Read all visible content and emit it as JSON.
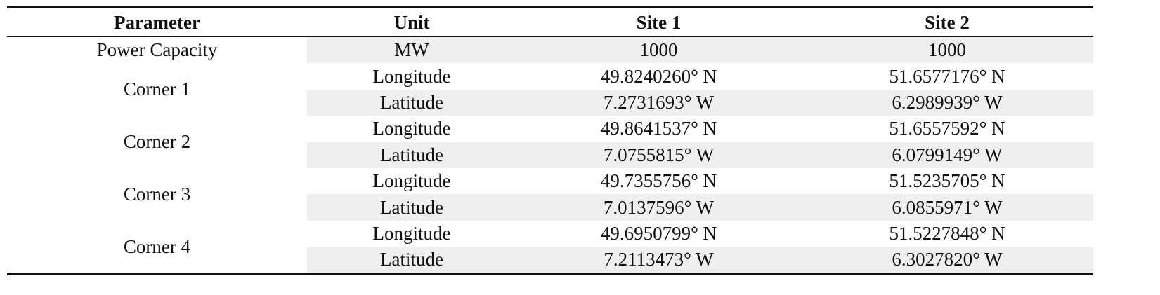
{
  "table": {
    "header": [
      "Parameter",
      "Unit",
      "Site 1",
      "Site 2"
    ],
    "power": {
      "label": "Power Capacity",
      "unit": "MW",
      "site1": "1000",
      "site2": "1000"
    },
    "groups": [
      {
        "label": "Corner 1",
        "rows": [
          [
            "Longitude",
            "49.8240260° N",
            "51.6577176° N"
          ],
          [
            "Latitude",
            "7.2731693° W",
            "6.2989939° W"
          ]
        ]
      },
      {
        "label": "Corner 2",
        "rows": [
          [
            "Longitude",
            "49.8641537° N",
            "51.6557592° N"
          ],
          [
            "Latitude",
            "7.0755815° W",
            "6.0799149° W"
          ]
        ]
      },
      {
        "label": "Corner 3",
        "rows": [
          [
            "Longitude",
            "49.7355756° N",
            "51.5235705° N"
          ],
          [
            "Latitude",
            "7.0137596° W",
            "6.0855971° W"
          ]
        ]
      },
      {
        "label": "Corner 4",
        "rows": [
          [
            "Longitude",
            "49.6950799° N",
            "51.5227848° N"
          ],
          [
            "Latitude",
            "7.2113473° W",
            "6.3027820° W"
          ]
        ]
      }
    ]
  }
}
